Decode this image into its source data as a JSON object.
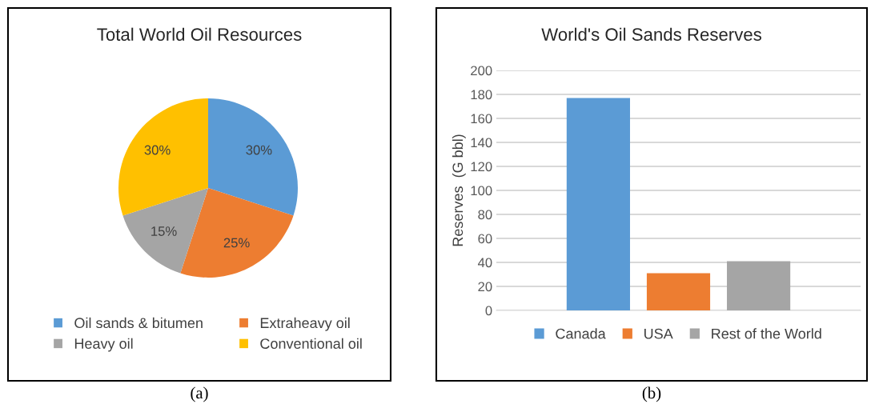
{
  "chart_data": [
    {
      "type": "pie",
      "title": "Total World Oil Resources",
      "categories": [
        "Oil sands & bitumen",
        "Extraheavy oil",
        "Heavy oil",
        "Conventional oil"
      ],
      "values": [
        30,
        25,
        15,
        30
      ],
      "colors": [
        "#5b9bd5",
        "#ed7d31",
        "#a5a5a5",
        "#ffc000"
      ],
      "value_labels": [
        "30%",
        "25%",
        "15%",
        "30%"
      ],
      "legend": "bottom",
      "annotations": [
        "(a)"
      ]
    },
    {
      "type": "bar",
      "title": "World's Oil Sands Reserves",
      "ylabel": "Reserves  (G bbl)",
      "categories": [
        null
      ],
      "series": [
        {
          "name": "Canada",
          "color": "#5b9bd5",
          "values": [
            177
          ]
        },
        {
          "name": "USA",
          "color": "#ed7d31",
          "values": [
            31
          ]
        },
        {
          "name": "Rest of the World",
          "color": "#a5a5a5",
          "values": [
            41
          ]
        }
      ],
      "ylim": [
        0,
        200
      ],
      "yticks": [
        0,
        20,
        40,
        60,
        80,
        100,
        120,
        140,
        160,
        180,
        200
      ],
      "grid": "y",
      "legend": "bottom",
      "annotations": [
        "(b)"
      ]
    }
  ]
}
